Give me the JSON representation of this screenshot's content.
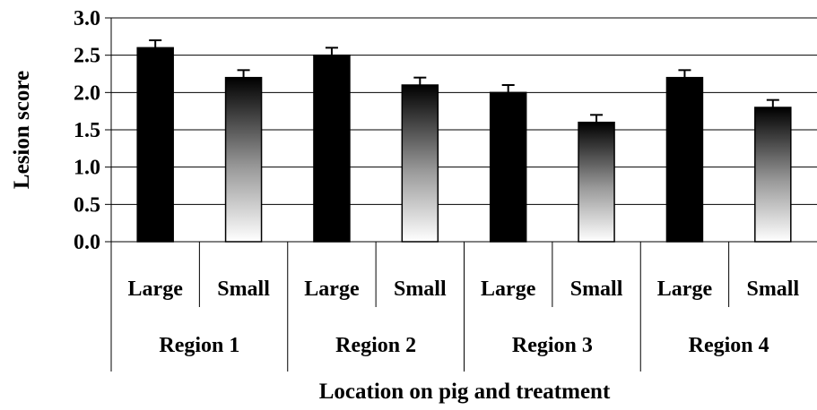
{
  "chart_data": {
    "type": "bar",
    "title": "",
    "xlabel": "Location on pig and treatment",
    "ylabel": "Lesion score",
    "ylim": [
      0,
      3.0
    ],
    "yticks": [
      "0.0",
      "0.5",
      "1.0",
      "1.5",
      "2.0",
      "2.5",
      "3.0"
    ],
    "grid": true,
    "groups": [
      "Region 1",
      "Region 2",
      "Region 3",
      "Region 4"
    ],
    "categories": [
      "Large",
      "Small",
      "Large",
      "Small",
      "Large",
      "Small",
      "Large",
      "Small"
    ],
    "values": [
      2.6,
      2.2,
      2.5,
      2.1,
      2.0,
      1.6,
      2.2,
      1.8
    ],
    "errors": [
      0.1,
      0.1,
      0.1,
      0.1,
      0.1,
      0.1,
      0.1,
      0.1
    ],
    "fills": {
      "Large": "#000000",
      "Small": "gradient-black-to-white"
    }
  }
}
